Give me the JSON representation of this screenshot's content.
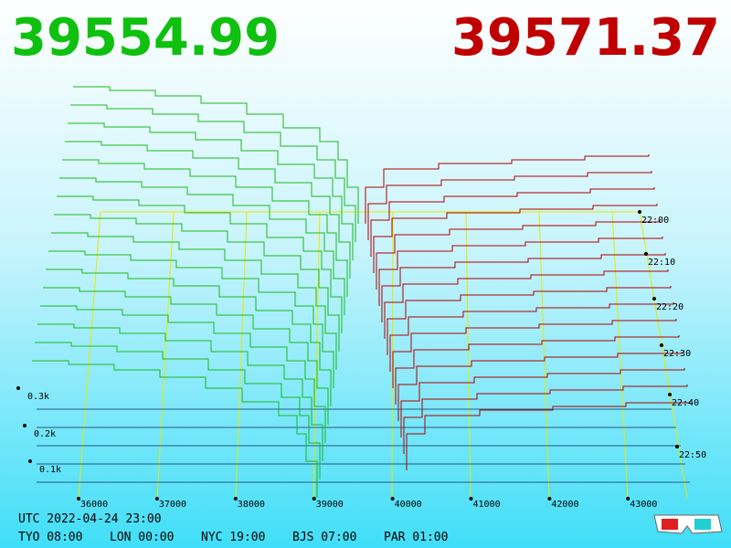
{
  "header": {
    "bid": "39554.99",
    "ask": "39571.37"
  },
  "price_axis": {
    "ticks": [
      "36000",
      "37000",
      "38000",
      "39000",
      "40000",
      "41000",
      "42000",
      "43000"
    ]
  },
  "depth_axis": {
    "ticks": [
      "0.1k",
      "0.2k",
      "0.3k"
    ]
  },
  "time_axis": {
    "ticks": [
      "22:00",
      "22:10",
      "22:20",
      "22:30",
      "22:40",
      "22:50"
    ]
  },
  "footer": {
    "utc": "UTC 2022-04-24 23:00",
    "cities": [
      "TYO 08:00",
      "LON 00:00",
      "NYC 19:00",
      "BJS 07:00",
      "PAR 01:00"
    ]
  }
}
